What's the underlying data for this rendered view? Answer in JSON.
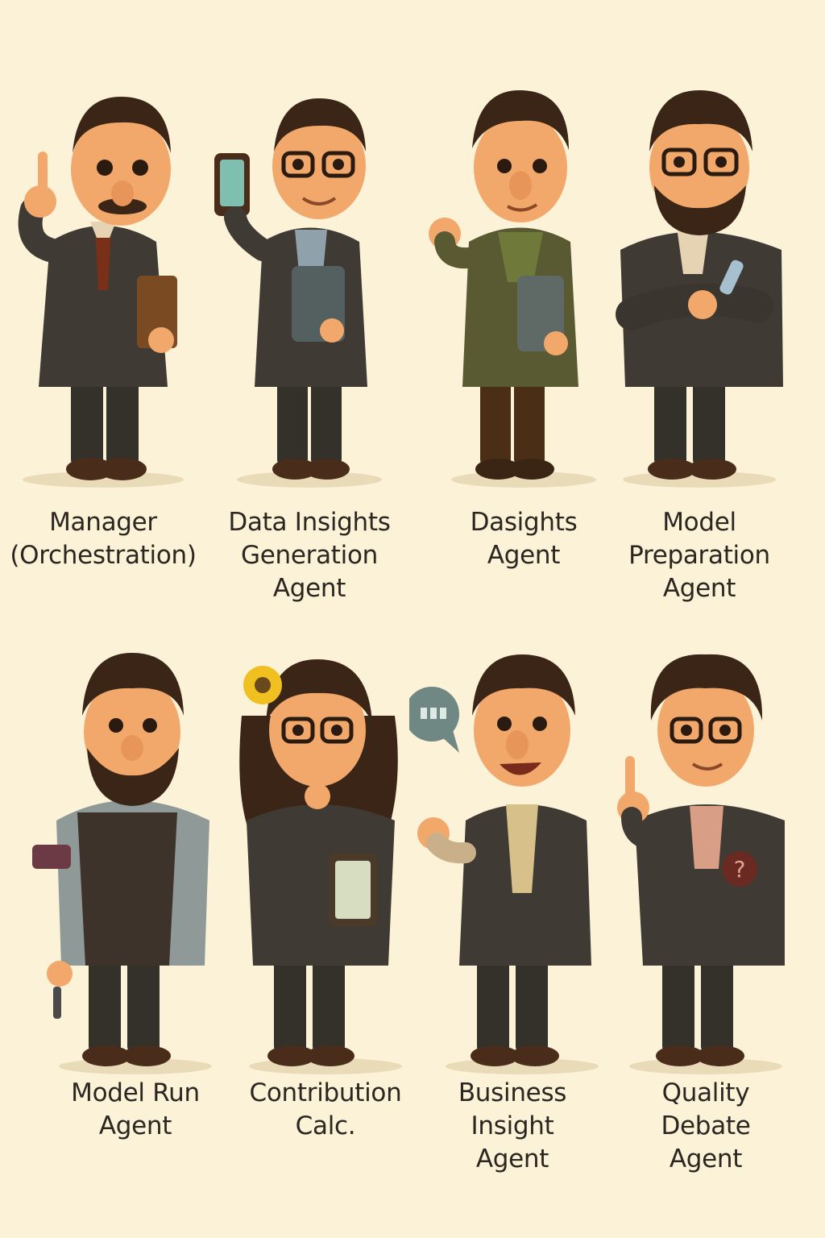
{
  "characters": [
    {
      "id": "manager",
      "lines": [
        "Manager",
        "(Orchestration)"
      ]
    },
    {
      "id": "data-insights",
      "lines": [
        "Data Insights",
        "Generation",
        "Agent"
      ]
    },
    {
      "id": "dasights",
      "lines": [
        "Dasights",
        "Agent"
      ]
    },
    {
      "id": "model-prep",
      "lines": [
        "Model",
        "Preparation",
        "Agent"
      ]
    },
    {
      "id": "model-run",
      "lines": [
        "Model Run",
        "Agent"
      ]
    },
    {
      "id": "contribution",
      "lines": [
        "Contribution",
        "Calc."
      ]
    },
    {
      "id": "business",
      "lines": [
        "Business",
        "Insight",
        "Agent"
      ]
    },
    {
      "id": "quality",
      "lines": [
        "Quality",
        "Debate",
        "Agent"
      ]
    }
  ],
  "colors": {
    "background": "#fbf2d8",
    "skin": "#f2a86a",
    "hair": "#3b2516",
    "suit": "#3f3a33",
    "shoe": "#4a2c1a",
    "text": "#2b2620"
  },
  "icons": [
    "raised-finger",
    "phone",
    "tablet",
    "folder",
    "speech-bubble",
    "question-badge",
    "flower",
    "armband"
  ]
}
